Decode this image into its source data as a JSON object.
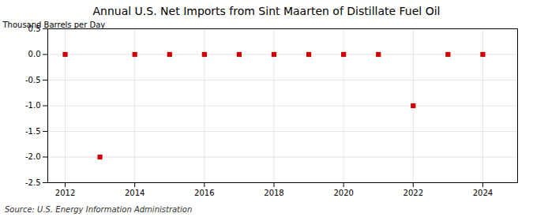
{
  "chart_data": {
    "type": "scatter",
    "title": "Annual U.S. Net Imports from Sint Maarten of Distillate Fuel Oil",
    "ylabel": "Thousand Barrels per Day",
    "source": "Source: U.S. Energy Information Administration",
    "x": [
      2012,
      2013,
      2014,
      2015,
      2016,
      2017,
      2018,
      2019,
      2020,
      2021,
      2022,
      2023,
      2024
    ],
    "values": [
      0,
      -2,
      0,
      0,
      0,
      0,
      0,
      0,
      0,
      0,
      -1,
      0,
      0
    ],
    "color": "#cc0000",
    "marker": "square",
    "xlim": [
      2011.5,
      2025.0
    ],
    "ylim": [
      -2.5,
      0.5
    ],
    "xticks": [
      2012,
      2014,
      2016,
      2018,
      2020,
      2022,
      2024
    ],
    "yticks": [
      0.5,
      {
        "value": 0,
        "label": "0.0"
      },
      -0.5,
      {
        "value": -1,
        "label": "-1.0"
      },
      -1.5,
      {
        "value": -2,
        "label": "-2.0"
      },
      -2.5
    ],
    "grid": true
  }
}
